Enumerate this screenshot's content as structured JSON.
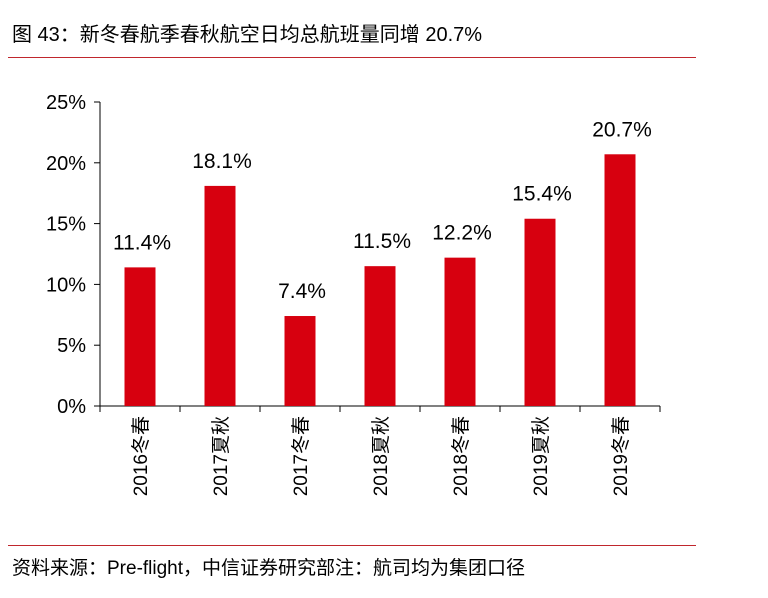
{
  "header": {
    "title": "图 43：新冬春航季春秋航空日均总航班量同增 20.7%"
  },
  "footer": {
    "source": "资料来源：Pre-flight，中信证券研究部注：航司均为集团口径"
  },
  "chart_data": {
    "type": "bar",
    "title": "图 43：新冬春航季春秋航空日均总航班量同增 20.7%",
    "categories": [
      "2016冬春",
      "2017夏秋",
      "2017冬春",
      "2018夏秋",
      "2018冬春",
      "2019夏秋",
      "2019冬春"
    ],
    "values": [
      11.4,
      18.1,
      7.4,
      11.5,
      12.2,
      15.4,
      20.7
    ],
    "value_labels": [
      "11.4%",
      "18.1%",
      "7.4%",
      "11.5%",
      "12.2%",
      "15.4%",
      "20.7%"
    ],
    "yticks": [
      "0%",
      "5%",
      "10%",
      "15%",
      "20%",
      "25%"
    ],
    "ylim": [
      0,
      25
    ],
    "xlabel": "",
    "ylabel": "",
    "grid": false,
    "bar_color": "#d7000f",
    "accent_color": "#c0272d"
  }
}
